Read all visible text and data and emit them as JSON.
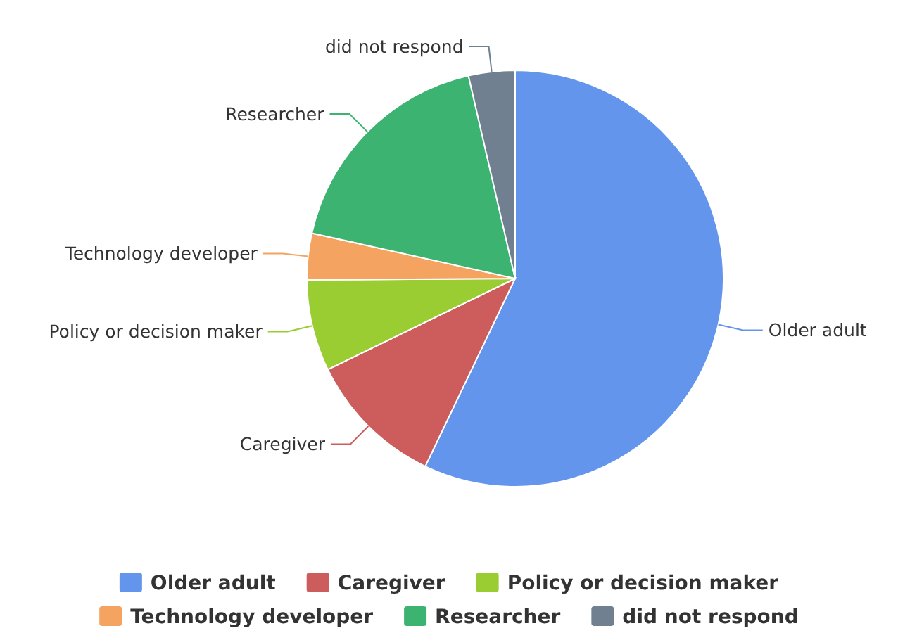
{
  "chart_data": {
    "type": "pie",
    "categories": [
      "Older adult",
      "Caregiver",
      "Policy or decision maker",
      "Technology developer",
      "Researcher",
      "did not respond"
    ],
    "values": [
      57.1,
      10.7,
      7.1,
      3.6,
      17.9,
      3.6
    ],
    "colors": [
      "#6495ed",
      "#cd5c5c",
      "#9acd32",
      "#f4a460",
      "#3cb371",
      "#708090"
    ],
    "legend": "bottom"
  }
}
